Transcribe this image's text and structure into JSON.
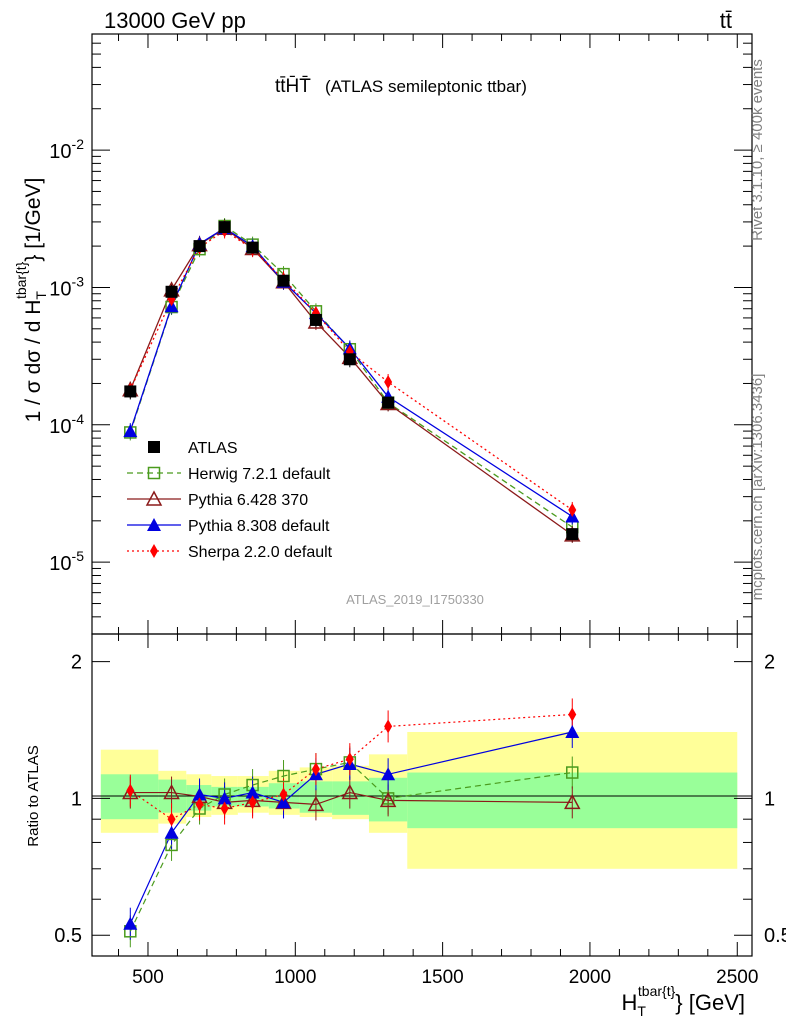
{
  "header": {
    "left": "13000 GeV pp",
    "right": "tt̄"
  },
  "side": {
    "rivet": "Rivet 3.1.10, ≥ 400k events",
    "mcplots": "mcplots.cern.ch [arXiv:1306.3436]"
  },
  "chart_data": {
    "type": "line",
    "title": "tt̄H̄T̄",
    "subtitle": "(ATLAS semileptonic ttbar)",
    "analysis": "ATLAS_2019_I1750330",
    "xlabel": "H_T^{tbar{t}} [GeV]",
    "xlabel_main": "H",
    "xlabel_sub": "T",
    "xlabel_sup": "tbar{t}",
    "xlabel_unit": "} [GeV]",
    "ylabel": "1 / σ dσ / d H_T^{tbar{t}} [1/GeV]",
    "ylabel_part1": "1 / σ dσ / d H",
    "ylabel_sub": "T",
    "ylabel_sup": "tbar{t}",
    "ylabel_part2": "} [1/GeV]",
    "ratio_ylabel": "Ratio to ATLAS",
    "xlim": [
      310,
      2550
    ],
    "ylim": [
      3e-06,
      0.07
    ],
    "yscale": "log",
    "ratio_ylim": [
      0.45,
      2.3
    ],
    "xticks": [
      500,
      1000,
      1500,
      2000,
      2500
    ],
    "yticks": [
      {
        "base": "10",
        "exp": "-5",
        "value": 1e-05
      },
      {
        "base": "10",
        "exp": "-4",
        "value": 0.0001
      },
      {
        "base": "10",
        "exp": "-3",
        "value": 0.001
      },
      {
        "base": "10",
        "exp": "-2",
        "value": 0.01
      }
    ],
    "ratio_yticks": [
      0.5,
      1,
      2
    ],
    "ratio_ytick_labels": [
      "0.5",
      "1",
      "2"
    ],
    "x": [
      440,
      580,
      675,
      760,
      855,
      960,
      1070,
      1185,
      1315,
      1940
    ],
    "bins": [
      [
        340,
        535
      ],
      [
        535,
        630
      ],
      [
        630,
        715
      ],
      [
        715,
        805
      ],
      [
        805,
        910
      ],
      [
        910,
        1015
      ],
      [
        1015,
        1125
      ],
      [
        1125,
        1250
      ],
      [
        1250,
        1380
      ],
      [
        1380,
        2500
      ]
    ],
    "series": [
      {
        "name": "ATLAS",
        "color": "#000000",
        "marker": "square-filled",
        "dash": "none",
        "values": [
          0.000175,
          0.00093,
          0.002,
          0.00275,
          0.00195,
          0.00112,
          0.00058,
          0.0003,
          0.000145,
          1.6e-05
        ]
      },
      {
        "name": "Herwig 7.2.1 default",
        "color": "#4a9b1d",
        "marker": "square-open",
        "dash": "6,4",
        "values": [
          8.8e-05,
          0.00072,
          0.0019,
          0.0028,
          0.00205,
          0.00125,
          0.00067,
          0.000355,
          0.000145,
          1.8e-05
        ],
        "ratio": [
          0.51,
          0.79,
          0.95,
          1.02,
          1.07,
          1.12,
          1.16,
          1.2,
          1.0,
          1.14
        ]
      },
      {
        "name": "Pythia 6.428 370",
        "color": "#8b1a1a",
        "marker": "triangle-open",
        "dash": "none",
        "values": [
          0.00018,
          0.00096,
          0.00205,
          0.0027,
          0.00192,
          0.0011,
          0.00056,
          0.00031,
          0.000143,
          1.58e-05
        ],
        "ratio": [
          1.03,
          1.03,
          1.01,
          0.98,
          0.99,
          0.98,
          0.97,
          1.03,
          0.99,
          0.98
        ]
      },
      {
        "name": "Pythia 8.308 default",
        "color": "#0000e0",
        "marker": "triangle-filled",
        "dash": "none",
        "values": [
          9e-05,
          0.00073,
          0.00208,
          0.0027,
          0.002,
          0.0011,
          0.00065,
          0.00036,
          0.00016,
          2.15e-05
        ],
        "ratio": [
          0.53,
          0.84,
          1.02,
          1.0,
          1.03,
          0.98,
          1.13,
          1.19,
          1.13,
          1.4
        ]
      },
      {
        "name": "Sherpa 2.2.0 default",
        "color": "#ff0000",
        "marker": "diamond-filled",
        "dash": "2,3",
        "values": [
          0.00018,
          0.00082,
          0.00195,
          0.0026,
          0.0019,
          0.00115,
          0.00065,
          0.00034,
          0.000205,
          2.4e-05
        ],
        "ratio": [
          1.04,
          0.9,
          0.97,
          0.95,
          0.98,
          1.02,
          1.16,
          1.22,
          1.44,
          1.53
        ]
      }
    ],
    "ratio_bands": {
      "green": [
        [
          0.9,
          1.13
        ],
        [
          0.93,
          1.1
        ],
        [
          0.94,
          1.07
        ],
        [
          0.96,
          1.06
        ],
        [
          0.96,
          1.06
        ],
        [
          0.95,
          1.08
        ],
        [
          0.93,
          1.09
        ],
        [
          0.92,
          1.09
        ],
        [
          0.89,
          1.11
        ],
        [
          0.86,
          1.14
        ]
      ],
      "yellow": [
        [
          0.84,
          1.28
        ],
        [
          0.88,
          1.15
        ],
        [
          0.91,
          1.13
        ],
        [
          0.92,
          1.12
        ],
        [
          0.93,
          1.12
        ],
        [
          0.92,
          1.15
        ],
        [
          0.91,
          1.17
        ],
        [
          0.9,
          1.18
        ],
        [
          0.84,
          1.25
        ],
        [
          0.7,
          1.4
        ]
      ]
    },
    "legend_position": "lower-left"
  }
}
